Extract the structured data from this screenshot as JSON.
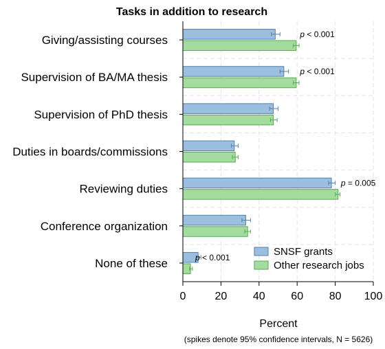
{
  "chart_data": {
    "type": "bar",
    "orientation": "horizontal",
    "title": "Tasks in addition to research",
    "xlabel": "Percent",
    "note": "(spikes denote 95% confidence intervals, N = 5626)",
    "xlim": [
      0,
      100
    ],
    "xticks": [
      0,
      20,
      40,
      60,
      80,
      100
    ],
    "grid": true,
    "legend_position": "bottom-right",
    "categories": [
      "Giving/assisting courses",
      "Supervision of BA/MA thesis",
      "Supervision of PhD thesis",
      "Duties in boards/commissions",
      "Reviewing duties",
      "Conference organization",
      "None of these"
    ],
    "series": [
      {
        "name": "SNSF grants",
        "color": "#9dbfdf",
        "edge_color": "#4f80ac",
        "values": [
          48.5,
          53,
          47.5,
          27,
          78,
          33,
          8
        ],
        "ci_low": [
          46.5,
          51,
          45.5,
          25.5,
          76.5,
          31,
          7
        ],
        "ci_high": [
          51,
          55.5,
          50,
          29,
          80,
          35.5,
          9.5
        ]
      },
      {
        "name": "Other research jobs",
        "color": "#a3dc9e",
        "edge_color": "#56aa50",
        "values": [
          59.5,
          59.5,
          47.5,
          27.5,
          81.5,
          34,
          4
        ],
        "ci_low": [
          58,
          58,
          46,
          26,
          80,
          32.5,
          3.5
        ],
        "ci_high": [
          61,
          61,
          49.5,
          29,
          82.5,
          35.5,
          5
        ]
      }
    ],
    "annotations": [
      {
        "category_index": 0,
        "text": "p < 0.001",
        "x": 61.5
      },
      {
        "category_index": 1,
        "text": "p < 0.001",
        "x": 61.5
      },
      {
        "category_index": 4,
        "text": "p = 0.005",
        "x": 83
      },
      {
        "category_index": 6,
        "text": "p < 0.001",
        "x": 6.5
      }
    ]
  }
}
